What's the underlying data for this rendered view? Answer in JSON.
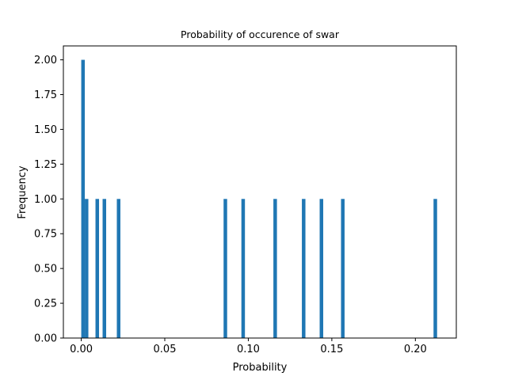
{
  "chart_data": {
    "type": "bar",
    "title": "Probability of occurence of swar",
    "xlabel": "Probability",
    "ylabel": "Frequency",
    "xlim": [
      -0.0107,
      0.2245
    ],
    "ylim": [
      0,
      2.1
    ],
    "grid": false,
    "legend": "none",
    "bar_color": "#1f77b4",
    "bin_width": 0.00213,
    "bins": [
      {
        "x": 0.0,
        "count": 2
      },
      {
        "x": 0.00213,
        "count": 1
      },
      {
        "x": 0.00852,
        "count": 1
      },
      {
        "x": 0.01278,
        "count": 1
      },
      {
        "x": 0.0213,
        "count": 1
      },
      {
        "x": 0.0852,
        "count": 1
      },
      {
        "x": 0.09585,
        "count": 1
      },
      {
        "x": 0.11502,
        "count": 1
      },
      {
        "x": 0.13206,
        "count": 1
      },
      {
        "x": 0.14271,
        "count": 1
      },
      {
        "x": 0.15549,
        "count": 1
      },
      {
        "x": 0.21087,
        "count": 1
      }
    ],
    "x_ticks": [
      {
        "value": 0.0,
        "label": "0.00"
      },
      {
        "value": 0.05,
        "label": "0.05"
      },
      {
        "value": 0.1,
        "label": "0.10"
      },
      {
        "value": 0.15,
        "label": "0.15"
      },
      {
        "value": 0.2,
        "label": "0.20"
      }
    ],
    "y_ticks": [
      {
        "value": 0.0,
        "label": "0.00"
      },
      {
        "value": 0.25,
        "label": "0.25"
      },
      {
        "value": 0.5,
        "label": "0.50"
      },
      {
        "value": 0.75,
        "label": "0.75"
      },
      {
        "value": 1.0,
        "label": "1.00"
      },
      {
        "value": 1.25,
        "label": "1.25"
      },
      {
        "value": 1.5,
        "label": "1.50"
      },
      {
        "value": 1.75,
        "label": "1.75"
      },
      {
        "value": 2.0,
        "label": "2.00"
      }
    ]
  }
}
